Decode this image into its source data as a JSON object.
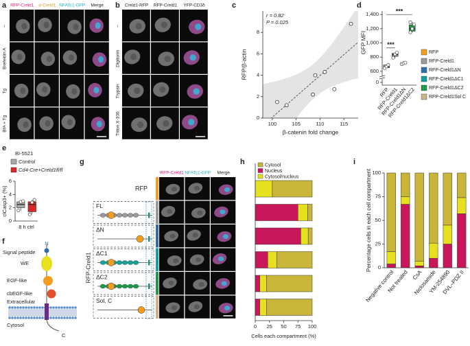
{
  "panels": {
    "a": {
      "label": "a",
      "columns": [
        "RFP-Creld1",
        "α-Creld1",
        "NFATc1-GFP",
        "Merge"
      ],
      "rows": [
        "–",
        "Brefeldin A",
        "Tg",
        "BfA + Tg"
      ]
    },
    "b": {
      "label": "b",
      "columns": [
        "Creld1-RFP",
        "RFP-Creld1",
        "YFP-CD3δ"
      ],
      "rows": [
        "–",
        "Digitonin",
        "Trypsin",
        "Triton X-100"
      ]
    },
    "f": {
      "label": "f",
      "labels": [
        "N",
        "Signal peptide",
        "WE",
        "EGF-like",
        "cbEGF-like",
        "Extracellular",
        "Cytosol",
        "C"
      ]
    },
    "g": {
      "label": "g",
      "columns": [
        "RFP-Creld1",
        "NFATc1-GFP",
        "Merge"
      ],
      "rows": [
        "RFP",
        "FL",
        "ΔN",
        "ΔC1",
        "ΔC2",
        "Sol. C"
      ],
      "group": "RFP-Creld1"
    }
  },
  "chart_data": [
    {
      "label": "c",
      "type": "scatter",
      "xlabel": "β-catenin fold change",
      "ylabel": "RFP/β-actin",
      "annotations": [
        "r = 0.82",
        "P = 0.025"
      ],
      "x": [
        101,
        103,
        108.5,
        109,
        111,
        113,
        116.5
      ],
      "values": [
        1.5,
        1.2,
        2.2,
        4.0,
        4.3,
        2.7,
        8.8
      ],
      "xlim": [
        98,
        118
      ],
      "xticks": [
        100,
        105,
        110,
        115
      ],
      "ylim": [
        0,
        10
      ],
      "yticks": [
        0,
        2,
        4,
        6,
        8
      ]
    },
    {
      "label": "d",
      "type": "box",
      "ylabel": "GFP MFI",
      "annotations": [
        "***",
        "***"
      ],
      "categories": [
        "RFP",
        "RFP-Creld1",
        "RFP-Creld1ΔN",
        "RFP-Creld1ΔC2"
      ],
      "boxes": [
        {
          "color": "#f39c1f",
          "points": [
            645,
            668,
            690
          ],
          "q1": 650,
          "median": 665,
          "q3": 690
        },
        {
          "color": "#9b9b9b",
          "points": [
            790,
            840,
            862
          ],
          "q1": 810,
          "median": 835,
          "q3": 855
        },
        {
          "color": "#7f8fa6",
          "points": [
            700,
            715,
            722
          ],
          "q1": 705,
          "median": 715,
          "q3": 722
        },
        {
          "color": "#1f9a4a",
          "points": [
            1150,
            1200,
            1260,
            1290
          ],
          "q1": 1165,
          "median": 1200,
          "q3": 1255
        }
      ],
      "legend": [
        {
          "name": "RFP",
          "color": "#f39c1f"
        },
        {
          "name": "RFP-Creld1",
          "color": "#9b9b9b"
        },
        {
          "name": "RFP-Creld1ΔN",
          "color": "#2f6db3"
        },
        {
          "name": "RFP-Creld1ΔC1",
          "color": "#14a39a"
        },
        {
          "name": "RFP-Creld1ΔC2",
          "color": "#1f9a4a"
        },
        {
          "name": "RFP-Creld1Sol C",
          "color": "#c8b38a"
        }
      ],
      "ylim": [
        560,
        1450
      ],
      "yticks": [
        0,
        600,
        800,
        {
          "value": 1000,
          "label": "1,000"
        },
        {
          "value": 1200,
          "label": "1,200"
        },
        {
          "value": 1400,
          "label": "1,400"
        }
      ]
    },
    {
      "label": "e",
      "type": "box",
      "title": "BI-5521",
      "ylabel": "clCasp3+ (%)",
      "categories": [
        "8 h ctrl"
      ],
      "series": [
        {
          "name": "Control",
          "color": "#aaaaaa",
          "points": [
            1.6,
            2.9,
            3.0
          ],
          "q1": 2.0,
          "median": 2.5,
          "q3": 2.9
        },
        {
          "name": "Cd4-Cre+Creld1fl/fl",
          "color": "#d62a2a",
          "points": [
            1.0,
            2.8,
            3.2
          ],
          "q1": 1.4,
          "median": 2.5,
          "q3": 2.9
        }
      ],
      "ylim": [
        0,
        6
      ],
      "yticks": [
        0,
        2,
        4,
        6
      ]
    },
    {
      "label": "h",
      "type": "stacked-barh",
      "xlabel": "Cells each compartment (%)",
      "categories": [
        null,
        null,
        null,
        null,
        null,
        null
      ],
      "series": [
        {
          "name": "Cytosol",
          "color": "#c9b53a",
          "values": [
            70,
            8,
            7,
            62,
            80,
            80
          ]
        },
        {
          "name": "Nucleus",
          "color": "#c8175a",
          "values": [
            0,
            75,
            80,
            22,
            8,
            8
          ]
        },
        {
          "name": "Cytosol/nucleus",
          "color": "#e7e01f",
          "values": [
            30,
            17,
            13,
            16,
            12,
            12
          ]
        }
      ],
      "xlim": [
        0,
        100
      ],
      "xticks": [
        0,
        25,
        50,
        75,
        100
      ]
    },
    {
      "label": "i",
      "type": "stacked-bar",
      "ylabel": "Percentage cells in each cell compartment",
      "categories": [
        "Negative control",
        "Not treated",
        "CsA",
        "Niclosamide",
        "YM-254890",
        "DVL–PDZ II"
      ],
      "series": [
        {
          "color": "#c8175a",
          "values": [
            4,
            67,
            2,
            10,
            25,
            57
          ]
        },
        {
          "color": "#e7e01f",
          "values": [
            13,
            8,
            5,
            16,
            20,
            17
          ]
        },
        {
          "color": "#c9b53a",
          "values": [
            83,
            25,
            93,
            74,
            55,
            26
          ]
        }
      ],
      "ylim": [
        0,
        100
      ],
      "yticks": [
        0,
        25,
        50,
        75,
        100
      ]
    }
  ]
}
